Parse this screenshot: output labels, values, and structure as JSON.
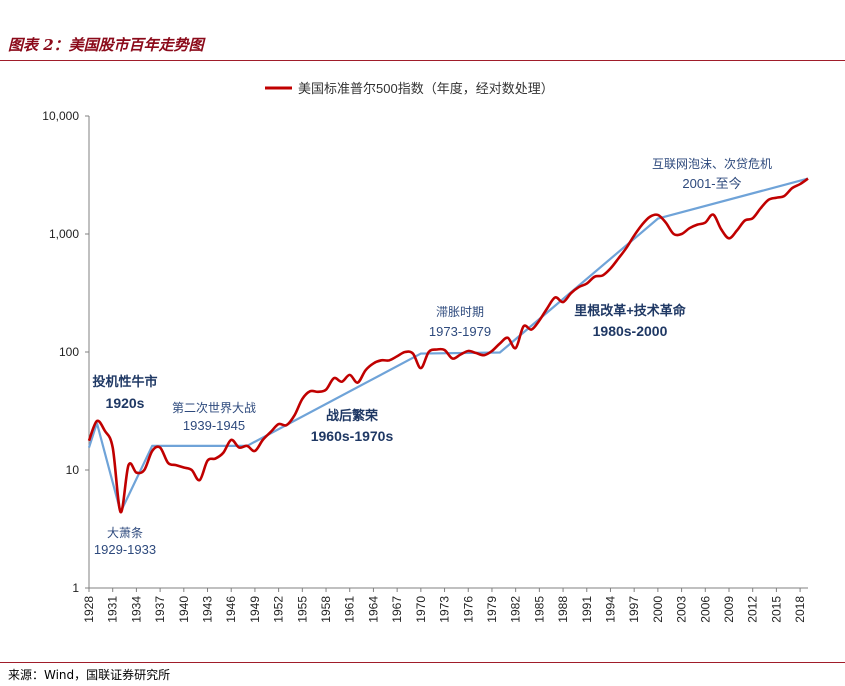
{
  "figure_title": "图表 2：美国股市百年走势图",
  "source_note": "来源：Wind，国联证券研究所",
  "colors": {
    "series_line": "#C00000",
    "trend_line": "#6FA3D8",
    "annotation_dark": "#1F3864",
    "annotation_light": "#2E4A7D"
  },
  "chart_data": {
    "type": "line",
    "title": "",
    "legend": [
      "美国标准普尔500指数（年度，经对数处理）"
    ],
    "legend_position": "top-center",
    "xlabel": "",
    "ylabel": "",
    "y_scale": "log",
    "ylim": [
      1,
      10000
    ],
    "y_ticks": [
      {
        "value": 1,
        "label": "1"
      },
      {
        "value": 10,
        "label": "10"
      },
      {
        "value": 100,
        "label": "100"
      },
      {
        "value": 1000,
        "label": "1,000"
      },
      {
        "value": 10000,
        "label": "10,000"
      }
    ],
    "xlim": [
      1928,
      2019
    ],
    "x_ticks": [
      "1928",
      "1931",
      "1934",
      "1937",
      "1940",
      "1943",
      "1946",
      "1949",
      "1952",
      "1955",
      "1958",
      "1961",
      "1964",
      "1967",
      "1970",
      "1973",
      "1976",
      "1979",
      "1982",
      "1985",
      "1988",
      "1991",
      "1994",
      "1997",
      "2000",
      "2003",
      "2006",
      "2009",
      "2012",
      "2015",
      "2018"
    ],
    "grid": false,
    "series": [
      {
        "name": "美国标准普尔500指数（年度，经对数处理）",
        "x": [
          1928,
          1929,
          1930,
          1931,
          1932,
          1933,
          1934,
          1935,
          1936,
          1937,
          1938,
          1939,
          1940,
          1941,
          1942,
          1943,
          1944,
          1945,
          1946,
          1947,
          1948,
          1949,
          1950,
          1951,
          1952,
          1953,
          1954,
          1955,
          1956,
          1957,
          1958,
          1959,
          1960,
          1961,
          1962,
          1963,
          1964,
          1965,
          1966,
          1967,
          1968,
          1969,
          1970,
          1971,
          1972,
          1973,
          1974,
          1975,
          1976,
          1977,
          1978,
          1979,
          1980,
          1981,
          1982,
          1983,
          1984,
          1985,
          1986,
          1987,
          1988,
          1989,
          1990,
          1991,
          1992,
          1993,
          1994,
          1995,
          1996,
          1997,
          1998,
          1999,
          2000,
          2001,
          2002,
          2003,
          2004,
          2005,
          2006,
          2007,
          2008,
          2009,
          2010,
          2011,
          2012,
          2013,
          2014,
          2015,
          2016,
          2017,
          2018,
          2019
        ],
        "values": [
          17.7,
          26.0,
          21.5,
          15.5,
          4.4,
          11.0,
          9.5,
          10.0,
          14.5,
          15.5,
          11.5,
          11.0,
          10.5,
          10.0,
          8.2,
          12.0,
          12.5,
          14.0,
          18.0,
          15.5,
          16.0,
          14.5,
          18.0,
          21.0,
          24.5,
          24.0,
          29.0,
          40.0,
          46.5,
          46.0,
          48.0,
          60.0,
          56.0,
          64.0,
          55.0,
          70.0,
          80.0,
          85.0,
          85.0,
          92.0,
          100.0,
          97.0,
          73.0,
          100.0,
          105.0,
          104.0,
          88.0,
          95.0,
          102.0,
          98.0,
          94.0,
          102.0,
          118.0,
          132.0,
          108.0,
          165.0,
          155.0,
          185.0,
          235.0,
          290.0,
          265.0,
          315.0,
          355.0,
          380.0,
          435.0,
          445.0,
          510.0,
          620.0,
          760.0,
          970.0,
          1200.0,
          1400.0,
          1450.0,
          1250.0,
          1000.0,
          1000.0,
          1120.0,
          1200.0,
          1250.0,
          1460.0,
          1100.0,
          920.0,
          1070.0,
          1300.0,
          1360.0,
          1650.0,
          1950.0,
          2030.0,
          2100.0,
          2450.0,
          2650.0,
          2950.0
        ]
      },
      {
        "name": "trend",
        "x": [
          1928,
          1929,
          1932,
          1936,
          1948,
          1970,
          1980,
          2000,
          2019
        ],
        "values": [
          15.5,
          25.0,
          4.4,
          16.0,
          16.0,
          97.0,
          99.0,
          1350.0,
          2950.0
        ]
      }
    ],
    "annotations": [
      {
        "title": "投机性牛市",
        "period": "1920s",
        "style": "bold"
      },
      {
        "title": "大萧条",
        "period": "1929-1933",
        "style": "regular"
      },
      {
        "title": "第二次世界大战",
        "period": "1939-1945",
        "style": "regular"
      },
      {
        "title": "战后繁荣",
        "period": "1960s-1970s",
        "style": "bold"
      },
      {
        "title": "滞胀时期",
        "period": "1973-1979",
        "style": "regular"
      },
      {
        "title": "里根改革+技术革命",
        "period": "1980s-2000",
        "style": "bold"
      },
      {
        "title": "互联网泡沫、次贷危机",
        "period": "2001-至今",
        "style": "regular"
      }
    ]
  }
}
